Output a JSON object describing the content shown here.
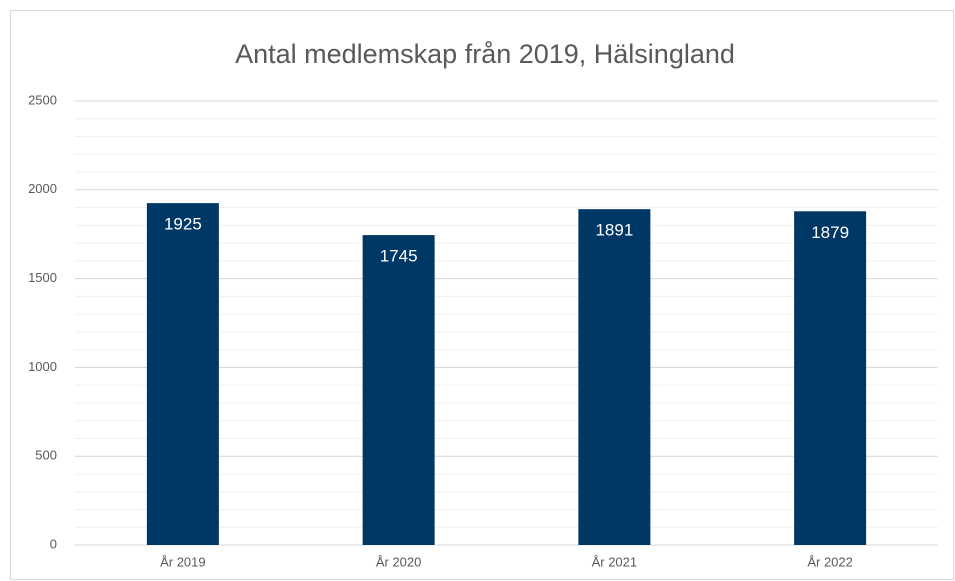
{
  "chart_data": {
    "type": "bar",
    "title": "Antal medlemskap från 2019, Hälsingland",
    "categories": [
      "År 2019",
      "År 2020",
      "År 2021",
      "År 2022"
    ],
    "values": [
      1925,
      1745,
      1891,
      1879
    ],
    "color": "#003865",
    "label_color": "#ffffff",
    "ylim": [
      0,
      2500
    ],
    "yticks": [
      0,
      500,
      1000,
      1500,
      2000,
      2500
    ],
    "grid": true,
    "minor_grid_step": 100
  }
}
